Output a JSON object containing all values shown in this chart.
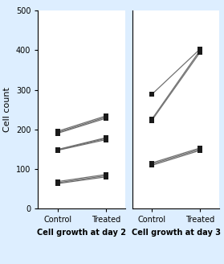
{
  "day2": {
    "groups": [
      {
        "control": [
          190,
          192,
          195
        ],
        "treated": [
          228,
          231,
          234
        ]
      },
      {
        "control": [
          147,
          148,
          149
        ],
        "treated": [
          174,
          177,
          179
        ]
      },
      {
        "control": [
          63,
          65,
          68
        ],
        "treated": [
          80,
          83,
          86
        ]
      }
    ]
  },
  "day3": {
    "groups": [
      {
        "control": [
          288,
          225,
          222
        ],
        "treated": [
          403,
          400,
          395
        ]
      },
      {
        "control": [
          109,
          112,
          115
        ],
        "treated": [
          147,
          150,
          153
        ]
      }
    ]
  },
  "ylabel": "Cell count",
  "xlabel_day2": "Cell growth at day 2",
  "xlabel_day3": "Cell growth at day 3",
  "xtick_labels": [
    "Control",
    "Treated"
  ],
  "ylim": [
    0,
    500
  ],
  "yticks": [
    0,
    100,
    200,
    300,
    400,
    500
  ],
  "line_color": "#707070",
  "marker_color": "#1a1a1a",
  "marker_size": 4,
  "line_width": 0.9,
  "background_color": "#ffffff",
  "fig_background": "#ddeeff"
}
